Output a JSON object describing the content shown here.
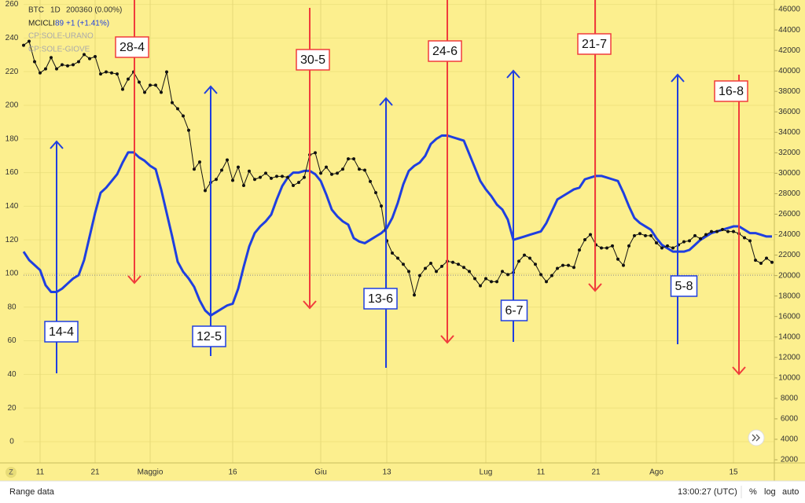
{
  "header": {
    "symbol": "BTC",
    "interval": "1D",
    "price": 20036,
    "change": "0 (0.00%)",
    "indicator": "MCICLI",
    "indicator_value": 89,
    "indicator_change": "+1 (+1.41%)",
    "hidden_studies": [
      "CP:SOLE-URANO",
      "CP:SOLE-GIOVE"
    ]
  },
  "bottom_bar": {
    "left": "Range data",
    "time": "13:00:27 (UTC)",
    "percent": "%",
    "log": "log",
    "auto": "auto",
    "zoom": "Z"
  },
  "chart_data": {
    "type": "line",
    "categories": [
      null,
      null,
      null,
      "11",
      null,
      null,
      null,
      null,
      null,
      null,
      null,
      null,
      null,
      "21",
      null,
      null,
      null,
      null,
      null,
      null,
      null,
      null,
      null,
      "Maggio",
      null,
      null,
      null,
      null,
      null,
      null,
      null,
      null,
      null,
      null,
      null,
      null,
      null,
      null,
      "16",
      null,
      null,
      null,
      null,
      null,
      null,
      null,
      null,
      null,
      null,
      null,
      null,
      null,
      null,
      null,
      "Giu",
      null,
      null,
      null,
      null,
      null,
      null,
      null,
      null,
      null,
      null,
      null,
      "13",
      null,
      null,
      null,
      null,
      null,
      null,
      null,
      null,
      null,
      null,
      null,
      null,
      null,
      null,
      null,
      null,
      null,
      "Lug",
      null,
      null,
      null,
      null,
      null,
      null,
      null,
      null,
      null,
      "11",
      null,
      null,
      null,
      null,
      null,
      null,
      null,
      null,
      null,
      "21",
      null,
      null,
      null,
      null,
      null,
      null,
      null,
      null,
      null,
      null,
      "Ago",
      null,
      null,
      null,
      null,
      null,
      null,
      null,
      null,
      null,
      null,
      null,
      null,
      null,
      "15",
      null,
      null,
      null,
      null,
      null,
      null,
      null
    ],
    "series": [
      {
        "name": "MCICLI",
        "color": "#1f3fe0",
        "axis": "y",
        "values": [
          113,
          108,
          105,
          102,
          93,
          89,
          89,
          91,
          94,
          97,
          99,
          108,
          122,
          136,
          148,
          151,
          155,
          159,
          166,
          172,
          172,
          169,
          167,
          164,
          162,
          150,
          136,
          122,
          107,
          101,
          97,
          92,
          84,
          78,
          75,
          77,
          79,
          81,
          82,
          91,
          104,
          116,
          124,
          128,
          131,
          135,
          144,
          152,
          157,
          160,
          160,
          161,
          161,
          159,
          155,
          147,
          138,
          134,
          131,
          129,
          121,
          119,
          118,
          120,
          122,
          124,
          127,
          133,
          142,
          153,
          161,
          164,
          166,
          170,
          177,
          180,
          182,
          182,
          181,
          180,
          179,
          171,
          163,
          155,
          150,
          146,
          141,
          138,
          132,
          120,
          121,
          122,
          123,
          124,
          125,
          130,
          137,
          144,
          146,
          148,
          150,
          151,
          156,
          157,
          158,
          158,
          157,
          156,
          155,
          148,
          140,
          133,
          130,
          128,
          126,
          121,
          117,
          115,
          113,
          113,
          113,
          114,
          117,
          120,
          122,
          124,
          125,
          126,
          127,
          128,
          128,
          126,
          124,
          124,
          123,
          122,
          122
        ]
      },
      {
        "name": "BTC",
        "color": "#111111",
        "axis": "y2",
        "markers": true,
        "values": [
          42500,
          42900,
          40900,
          39800,
          40200,
          41300,
          40200,
          40600,
          40500,
          40600,
          40900,
          41600,
          41200,
          41400,
          39700,
          39900,
          39800,
          39700,
          38200,
          39200,
          39900,
          38900,
          37900,
          38600,
          38600,
          37900,
          39900,
          36900,
          36300,
          35600,
          34200,
          30400,
          31100,
          28300,
          29100,
          29400,
          30300,
          31300,
          29300,
          30600,
          28800,
          30200,
          29400,
          29600,
          30000,
          29500,
          29700,
          29700,
          29600,
          28800,
          29100,
          29600,
          31800,
          32000,
          30000,
          30600,
          29900,
          30000,
          30400,
          31400,
          31400,
          30400,
          30300,
          29200,
          28100,
          26800,
          23400,
          22200,
          21700,
          21100,
          20400,
          18100,
          20000,
          20700,
          21200,
          20400,
          20900,
          21400,
          21300,
          21100,
          20800,
          20400,
          19700,
          19000,
          19700,
          19400,
          19400,
          20400,
          20100,
          20300,
          21400,
          22000,
          21700,
          21100,
          20100,
          19400,
          20000,
          20700,
          21000,
          21000,
          20800,
          22500,
          23500,
          24000,
          23000,
          22700,
          22700,
          22900,
          21600,
          21000,
          22900,
          23900,
          24100,
          23900,
          23900,
          23200,
          22700,
          22900,
          22700,
          23000,
          23300,
          23400,
          23900,
          23600,
          24000,
          24300,
          24300,
          24500,
          24300,
          24300,
          24100,
          23700,
          23400,
          21500,
          21200,
          21700,
          21300
        ]
      }
    ],
    "ylim": [
      -11.7,
      262.6
    ],
    "yticks": [
      0,
      20,
      40,
      60,
      80,
      100,
      120,
      140,
      160,
      180,
      200,
      220,
      240,
      260
    ],
    "y2lim": [
      1846,
      46928
    ],
    "y2ticks": [
      2000,
      4000,
      6000,
      8000,
      10000,
      12000,
      14000,
      16000,
      18000,
      20000,
      22000,
      24000,
      26000,
      28000,
      30000,
      32000,
      34000,
      36000,
      38000,
      40000,
      42000,
      44000,
      46000
    ],
    "grid": true,
    "background": "#fcef8e",
    "annotations": [
      {
        "text": "28-4",
        "color": "#f03c3c"
      },
      {
        "text": "30-5",
        "color": "#f03c3c"
      },
      {
        "text": "24-6",
        "color": "#f03c3c"
      },
      {
        "text": "21-7",
        "color": "#f03c3c"
      },
      {
        "text": "16-8",
        "color": "#f03c3c"
      },
      {
        "text": "14-4",
        "color": "#1f3fe0"
      },
      {
        "text": "12-5",
        "color": "#1f3fe0"
      },
      {
        "text": "13-6",
        "color": "#1f3fe0"
      },
      {
        "text": "6-7",
        "color": "#1f3fe0"
      },
      {
        "text": "5-8",
        "color": "#1f3fe0"
      }
    ]
  }
}
